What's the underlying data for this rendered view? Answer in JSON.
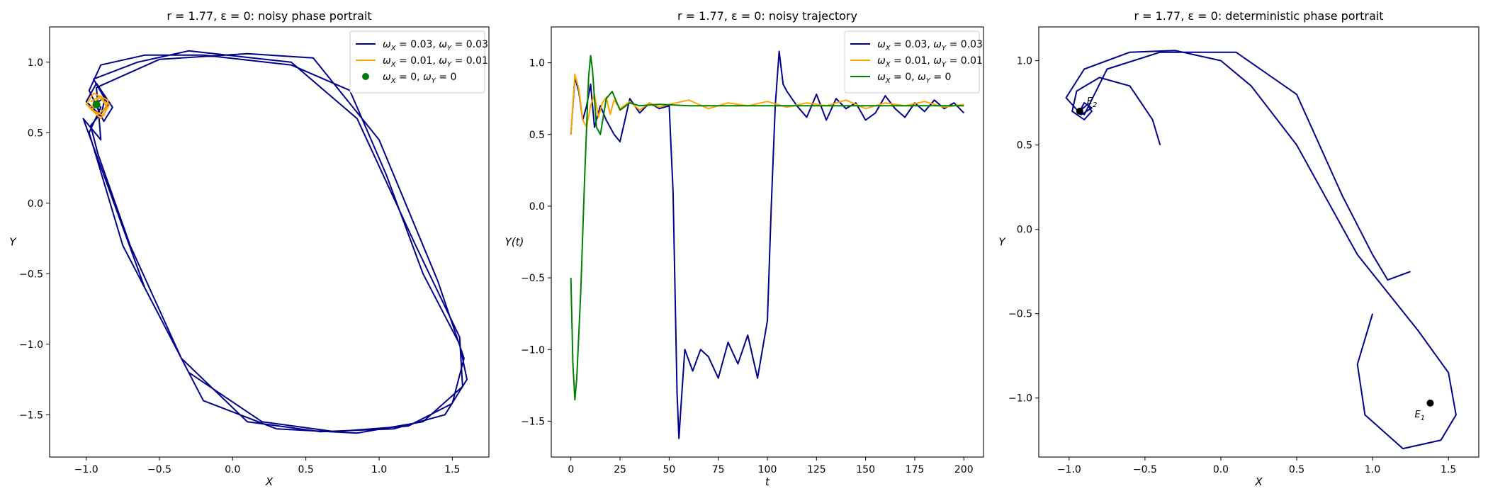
{
  "colors": {
    "navy": "#00008b",
    "orange": "#ffa500",
    "green": "#008000",
    "black": "#000000"
  },
  "chart_data": [
    {
      "type": "line",
      "title": "r = 1.77, ε = 0: noisy phase portrait",
      "xlabel": "X",
      "ylabel": "Y",
      "xlim": [
        -1.25,
        1.75
      ],
      "ylim": [
        -1.8,
        1.25
      ],
      "xticks": [
        -1.0,
        -0.5,
        0.0,
        0.5,
        1.0,
        1.5
      ],
      "yticks": [
        -1.5,
        -1.0,
        -0.5,
        0.0,
        0.5,
        1.0
      ],
      "xtick_labels": [
        "−1.0",
        "−0.5",
        "0.0",
        "0.5",
        "1.0",
        "1.5"
      ],
      "ytick_labels": [
        "−1.5",
        "−1.0",
        "−0.5",
        "0.0",
        "0.5",
        "1.0"
      ],
      "legend_position": "top-right",
      "series": [
        {
          "name": "ωX = 0.03, ωY = 0.03",
          "legend": [
            "ω",
            "X",
            " = 0.03, ",
            "ω",
            "Y",
            " = 0.03"
          ],
          "color": "#00008b",
          "x": [
            -0.95,
            -0.87,
            -0.9,
            -1.0,
            -0.93,
            -0.82,
            -0.88,
            -0.98,
            -0.9,
            -0.6,
            -0.2,
            0.4,
            0.8,
            1.05,
            1.3,
            1.55,
            1.6,
            1.45,
            1.1,
            0.6,
            0.1,
            -0.35,
            -0.7,
            -0.92,
            -0.97,
            -0.85,
            -0.95,
            -0.65,
            -0.3,
            0.4,
            0.85,
            1.25,
            1.55,
            1.57,
            1.3,
            0.85,
            0.3,
            -0.2,
            -0.6,
            -0.88,
            -1.02,
            -0.9,
            -0.93,
            -0.5,
            0.1,
            0.55,
            1.0,
            1.4,
            1.58,
            1.5,
            1.2,
            0.7,
            0.2,
            -0.3,
            -0.75,
            -0.98,
            -0.9,
            -0.95
          ],
          "y": [
            0.7,
            0.75,
            0.62,
            0.72,
            0.85,
            0.68,
            0.58,
            0.8,
            0.98,
            1.05,
            1.05,
            0.98,
            0.8,
            0.2,
            -0.5,
            -1.0,
            -1.25,
            -1.5,
            -1.6,
            -1.62,
            -1.55,
            -1.1,
            -0.3,
            0.35,
            0.55,
            0.7,
            0.88,
            1.0,
            1.08,
            1.0,
            0.6,
            -0.3,
            -0.95,
            -1.3,
            -1.55,
            -1.63,
            -1.6,
            -1.4,
            -0.6,
            0.2,
            0.6,
            0.45,
            0.82,
            1.02,
            1.06,
            1.03,
            0.45,
            -0.55,
            -1.1,
            -1.42,
            -1.58,
            -1.62,
            -1.55,
            -1.2,
            -0.3,
            0.5,
            0.68,
            0.72
          ]
        },
        {
          "name": "ωX = 0.01, ωY = 0.01",
          "legend": [
            "ω",
            "X",
            " = 0.01, ",
            "ω",
            "Y",
            " = 0.01"
          ],
          "color": "#ffa500",
          "x": [
            -0.97,
            -0.9,
            -0.86,
            -0.92,
            -1.0,
            -0.95,
            -0.85,
            -0.88,
            -0.96,
            -0.92,
            -0.84,
            -0.9,
            -0.98,
            -0.93
          ],
          "y": [
            0.72,
            0.76,
            0.68,
            0.63,
            0.7,
            0.78,
            0.73,
            0.62,
            0.66,
            0.75,
            0.7,
            0.6,
            0.68,
            0.71
          ]
        },
        {
          "name": "ωX = 0, ωY = 0",
          "legend": [
            "ω",
            "X",
            " = 0, ",
            "ω",
            "Y",
            " = 0"
          ],
          "color": "#008000",
          "marker": "dot",
          "x": [
            -0.93
          ],
          "y": [
            0.7
          ]
        }
      ]
    },
    {
      "type": "line",
      "title": "r = 1.77, ε = 0: noisy trajectory",
      "xlabel": "t",
      "ylabel": "Y(t)",
      "xlim": [
        -10,
        210
      ],
      "ylim": [
        -1.75,
        1.25
      ],
      "xticks": [
        0,
        25,
        50,
        75,
        100,
        125,
        150,
        175,
        200
      ],
      "yticks": [
        -1.5,
        -1.0,
        -0.5,
        0.0,
        0.5,
        1.0
      ],
      "xtick_labels": [
        "0",
        "25",
        "50",
        "75",
        "100",
        "125",
        "150",
        "175",
        "200"
      ],
      "ytick_labels": [
        "−1.5",
        "−1.0",
        "−0.5",
        "0.0",
        "0.5",
        "1.0"
      ],
      "legend_position": "top-right",
      "series": [
        {
          "name": "ωX = 0.03, ωY = 0.03",
          "legend": [
            "ω",
            "X",
            " = 0.03, ",
            "ω",
            "Y",
            " = 0.03"
          ],
          "color": "#00008b",
          "x": [
            0,
            2,
            4,
            6,
            8,
            10,
            12,
            15,
            18,
            22,
            25,
            30,
            35,
            40,
            45,
            50,
            52,
            54,
            55,
            56,
            58,
            62,
            66,
            70,
            75,
            80,
            85,
            90,
            95,
            100,
            102,
            104,
            106,
            108,
            110,
            115,
            120,
            125,
            130,
            135,
            140,
            145,
            150,
            155,
            160,
            165,
            170,
            175,
            180,
            185,
            190,
            195,
            200
          ],
          "y": [
            0.5,
            0.9,
            0.8,
            0.6,
            0.7,
            0.85,
            0.55,
            0.7,
            0.6,
            0.5,
            0.45,
            0.75,
            0.65,
            0.72,
            0.68,
            0.7,
            0.1,
            -1.3,
            -1.62,
            -1.4,
            -1.0,
            -1.15,
            -1.0,
            -1.05,
            -1.2,
            -0.95,
            -1.1,
            -0.9,
            -1.2,
            -0.8,
            0.0,
            0.7,
            1.08,
            0.85,
            0.8,
            0.7,
            0.62,
            0.78,
            0.6,
            0.75,
            0.68,
            0.72,
            0.6,
            0.65,
            0.77,
            0.68,
            0.62,
            0.72,
            0.66,
            0.74,
            0.68,
            0.72,
            0.65
          ]
        },
        {
          "name": "ωX = 0.01, ωY = 0.01",
          "legend": [
            "ω",
            "X",
            " = 0.01, ",
            "ω",
            "Y",
            " = 0.01"
          ],
          "color": "#ffa500",
          "x": [
            0,
            2,
            4,
            6,
            8,
            10,
            12,
            14,
            16,
            18,
            20,
            22,
            25,
            30,
            35,
            40,
            45,
            50,
            60,
            70,
            80,
            90,
            100,
            110,
            120,
            130,
            140,
            150,
            160,
            170,
            180,
            190,
            200
          ],
          "y": [
            0.5,
            0.92,
            0.82,
            0.6,
            0.55,
            0.7,
            0.78,
            0.62,
            0.72,
            0.76,
            0.64,
            0.74,
            0.68,
            0.73,
            0.67,
            0.72,
            0.69,
            0.71,
            0.74,
            0.68,
            0.72,
            0.7,
            0.73,
            0.69,
            0.72,
            0.7,
            0.74,
            0.68,
            0.72,
            0.7,
            0.73,
            0.69,
            0.71
          ]
        },
        {
          "name": "ωX = 0, ωY = 0",
          "legend": [
            "ω",
            "X",
            " = 0, ",
            "ω",
            "Y",
            " = 0"
          ],
          "color": "#008000",
          "x": [
            0,
            1,
            2,
            3,
            5,
            7,
            9,
            10,
            11,
            13,
            15,
            18,
            21,
            25,
            30,
            35,
            45,
            60,
            80,
            100,
            150,
            200
          ],
          "y": [
            -0.5,
            -1.1,
            -1.35,
            -1.2,
            -0.6,
            0.2,
            0.9,
            1.05,
            0.95,
            0.55,
            0.5,
            0.75,
            0.8,
            0.67,
            0.72,
            0.7,
            0.71,
            0.7,
            0.7,
            0.7,
            0.7,
            0.7
          ]
        }
      ]
    },
    {
      "type": "line",
      "title": "r = 1.77, ε = 0: deterministic phase portrait",
      "xlabel": "X",
      "ylabel": "Y",
      "xlim": [
        -1.2,
        1.7
      ],
      "ylim": [
        -1.35,
        1.2
      ],
      "xticks": [
        -1.0,
        -0.5,
        0.0,
        0.5,
        1.0,
        1.5
      ],
      "yticks": [
        -1.0,
        -0.5,
        0.0,
        0.5,
        1.0
      ],
      "xtick_labels": [
        "−1.0",
        "−0.5",
        "0.0",
        "0.5",
        "1.0",
        "1.5"
      ],
      "ytick_labels": [
        "−1.0",
        "−0.5",
        "0.0",
        "0.5",
        "1.0"
      ],
      "series": [
        {
          "name": "",
          "color": "#00008b",
          "x": [
            -0.4,
            -0.45,
            -0.6,
            -0.8,
            -0.95,
            -0.98,
            -0.9,
            -0.85,
            -0.88,
            -0.93,
            -0.9,
            -0.75,
            -0.4,
            0.1,
            0.5,
            0.8,
            1.0,
            1.1,
            1.25
          ],
          "y": [
            0.5,
            0.65,
            0.85,
            0.9,
            0.82,
            0.7,
            0.65,
            0.7,
            0.74,
            0.7,
            0.68,
            0.95,
            1.05,
            1.05,
            0.8,
            0.2,
            -0.15,
            -0.3,
            -0.25
          ]
        },
        {
          "name": "",
          "color": "#00008b",
          "x": [
            1.0,
            0.9,
            0.95,
            1.2,
            1.45,
            1.55,
            1.5,
            1.3,
            0.9,
            0.5,
            0.2,
            0.0,
            -0.3,
            -0.6,
            -0.9,
            -1.02,
            -0.92,
            -0.85,
            -0.9,
            -0.93
          ],
          "y": [
            -0.5,
            -0.8,
            -1.1,
            -1.3,
            -1.25,
            -1.1,
            -0.85,
            -0.6,
            -0.15,
            0.5,
            0.85,
            1.0,
            1.06,
            1.05,
            0.95,
            0.78,
            0.68,
            0.72,
            0.75,
            0.7
          ]
        }
      ],
      "points": [
        {
          "x": 1.38,
          "y": -1.03,
          "label": "E",
          "sub": "1",
          "color": "#000000"
        },
        {
          "x": -0.93,
          "y": 0.7,
          "label": "E",
          "sub": "2",
          "color": "#000000"
        }
      ]
    }
  ]
}
